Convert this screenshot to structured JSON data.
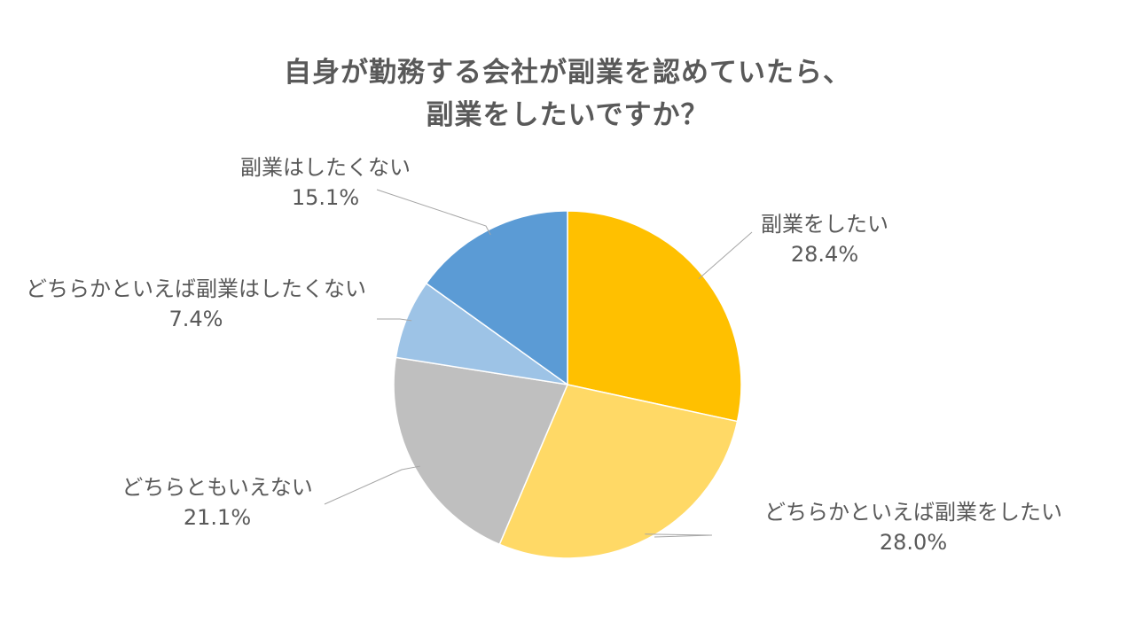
{
  "chart_data": {
    "type": "pie",
    "title": [
      "自身が勤務する会社が副業を認めていたら、",
      "副業をしたいですか？"
    ],
    "slices": [
      {
        "label": "副業をしたい",
        "value": 28.4,
        "value_text": "28.4%",
        "color": "#ffc000"
      },
      {
        "label": "どちらかといえば副業をしたい",
        "value": 28.0,
        "value_text": "28.0%",
        "color": "#ffd966"
      },
      {
        "label": "どちらともいえない",
        "value": 21.1,
        "value_text": "21.1%",
        "color": "#bfbfbf"
      },
      {
        "label": "どちらかといえば副業はしたくない",
        "value": 7.4,
        "value_text": "7.4%",
        "color": "#9dc3e6"
      },
      {
        "label": "副業はしたくない",
        "value": 15.1,
        "value_text": "15.1%",
        "color": "#5b9bd5"
      }
    ],
    "start_angle_deg": 0,
    "direction": "clockwise",
    "legend": "none",
    "leader_line_color": "#a6a6a6"
  }
}
